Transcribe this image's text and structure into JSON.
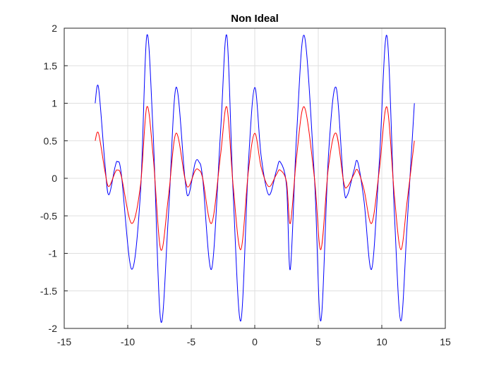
{
  "chart_data": {
    "type": "line",
    "title": "Non Ideal",
    "xlabel": "",
    "ylabel": "",
    "xlim": [
      -15,
      15
    ],
    "ylim": [
      -2,
      2
    ],
    "xticks": [
      -15,
      -10,
      -5,
      0,
      5,
      10,
      15
    ],
    "yticks": [
      -2,
      -1.5,
      -1,
      -0.5,
      0,
      0.5,
      1,
      1.5,
      2
    ],
    "grid": true,
    "x_range": [
      -12.566,
      12.566
    ],
    "series": [
      {
        "color": "#0000ff",
        "x": [
          -12.566,
          -12.3,
          -11.8,
          -11.5,
          -11.0,
          -10.8,
          -10.5,
          -9.7,
          -9.0,
          -8.5,
          -8.0,
          -7.4,
          -6.8,
          -6.2,
          -5.5,
          -5.2,
          -4.7,
          -4.4,
          -4.1,
          -3.4,
          -2.7,
          -2.2,
          -1.7,
          -1.1,
          -0.5,
          0.0,
          0.5,
          1.1,
          1.7,
          2.0,
          2.5,
          2.8,
          3.3,
          3.9,
          4.7,
          5.2,
          5.8,
          6.4,
          7.0,
          7.3,
          7.8,
          8.1,
          8.6,
          9.2,
          9.8,
          10.4,
          11.0,
          11.5,
          12.0,
          12.566
        ],
        "y": [
          1.0,
          1.21,
          0.2,
          -0.22,
          0.15,
          0.22,
          0.05,
          -1.21,
          -0.2,
          1.9,
          0.6,
          -1.9,
          -0.5,
          1.21,
          0.0,
          -0.22,
          0.2,
          0.22,
          0.0,
          -1.21,
          0.6,
          1.9,
          -0.2,
          -1.9,
          0.2,
          1.21,
          0.3,
          -0.22,
          0.1,
          0.22,
          -0.1,
          -1.21,
          0.6,
          1.9,
          0.0,
          -1.9,
          0.3,
          1.21,
          -0.1,
          -0.22,
          0.1,
          0.22,
          -0.3,
          -1.21,
          0.2,
          1.9,
          -0.5,
          -1.9,
          -0.6,
          1.0
        ]
      },
      {
        "color": "#ff0000",
        "x": [
          -12.566,
          -12.3,
          -11.8,
          -11.5,
          -11.0,
          -10.8,
          -10.5,
          -9.7,
          -9.0,
          -8.5,
          -8.0,
          -7.4,
          -6.8,
          -6.2,
          -5.5,
          -5.2,
          -4.7,
          -4.4,
          -4.1,
          -3.4,
          -2.7,
          -2.2,
          -1.7,
          -1.1,
          -0.5,
          0.0,
          0.5,
          1.1,
          1.7,
          2.0,
          2.5,
          2.8,
          3.3,
          3.9,
          4.7,
          5.2,
          5.8,
          6.4,
          7.0,
          7.3,
          7.8,
          8.1,
          8.6,
          9.2,
          9.8,
          10.4,
          11.0,
          11.5,
          12.0,
          12.566
        ],
        "y": [
          0.5,
          0.6,
          0.1,
          -0.11,
          0.075,
          0.11,
          0.025,
          -0.6,
          -0.1,
          0.95,
          0.3,
          -0.95,
          -0.25,
          0.6,
          0.0,
          -0.11,
          0.1,
          0.11,
          0.0,
          -0.6,
          0.3,
          0.95,
          -0.1,
          -0.95,
          0.1,
          0.6,
          0.15,
          -0.11,
          0.05,
          0.11,
          -0.05,
          -0.6,
          0.3,
          0.95,
          0.0,
          -0.95,
          0.15,
          0.6,
          -0.05,
          -0.11,
          0.05,
          0.11,
          -0.15,
          -0.6,
          0.1,
          0.95,
          -0.25,
          -0.95,
          -0.3,
          0.5
        ]
      }
    ]
  }
}
